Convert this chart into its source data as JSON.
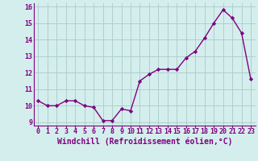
{
  "x": [
    0,
    1,
    2,
    3,
    4,
    5,
    6,
    7,
    8,
    9,
    10,
    11,
    12,
    13,
    14,
    15,
    16,
    17,
    18,
    19,
    20,
    21,
    22,
    23
  ],
  "y": [
    10.3,
    10.0,
    10.0,
    10.3,
    10.3,
    10.0,
    9.9,
    9.1,
    9.1,
    9.8,
    9.7,
    11.5,
    11.9,
    12.2,
    12.2,
    12.2,
    12.9,
    13.3,
    14.1,
    15.0,
    15.8,
    15.3,
    14.4,
    11.6
  ],
  "xlabel": "Windchill (Refroidissement éolien,°C)",
  "line_color": "#800080",
  "marker": "D",
  "marker_size": 2.2,
  "bg_color": "#d4eeed",
  "grid_color": "#aecfcc",
  "ylim": [
    8.8,
    16.2
  ],
  "xlim": [
    -0.5,
    23.5
  ],
  "yticks": [
    9,
    10,
    11,
    12,
    13,
    14,
    15,
    16
  ],
  "xticks": [
    0,
    1,
    2,
    3,
    4,
    5,
    6,
    7,
    8,
    9,
    10,
    11,
    12,
    13,
    14,
    15,
    16,
    17,
    18,
    19,
    20,
    21,
    22,
    23
  ],
  "tick_fontsize": 6.0,
  "xlabel_fontsize": 7.0,
  "label_color": "#800080",
  "line_width": 1.0
}
